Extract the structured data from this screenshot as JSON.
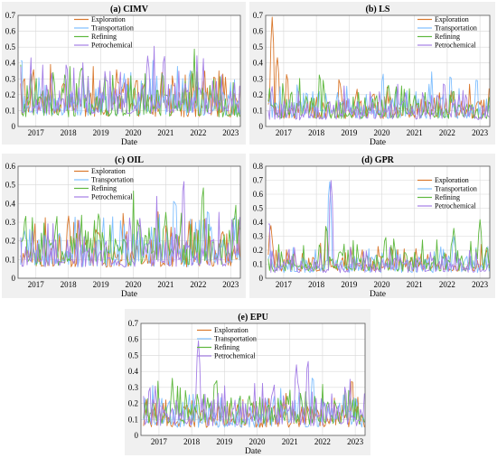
{
  "colors": {
    "Exploration": "#d9782d",
    "Transportation": "#7fbfff",
    "Refining": "#5fb83f",
    "Petrochemical": "#a57fe6"
  },
  "chart_data": [
    {
      "type": "line",
      "title": "(a) CIMV",
      "xlabel": "Date",
      "ylabel": "",
      "xlim": [
        2016.45,
        2023.3
      ],
      "ylim": [
        0,
        0.7
      ],
      "xticks": [
        "2017",
        "2018",
        "2019",
        "2020",
        "2021",
        "2022",
        "2023"
      ],
      "yticks": [
        "0",
        "0.1",
        "0.2",
        "0.3",
        "0.4",
        "0.5",
        "0.6",
        "0.7"
      ],
      "grid": true,
      "legend_position": "top-center",
      "series": [
        {
          "name": "Exploration",
          "base": 0.06,
          "spread": 0.22,
          "seed": 11,
          "spikes": [
            [
              2020.35,
              0.3
            ],
            [
              2022.5,
              0.35
            ]
          ]
        },
        {
          "name": "Transportation",
          "base": 0.07,
          "spread": 0.2,
          "seed": 23,
          "spikes": [
            [
              2016.55,
              0.47
            ],
            [
              2021.75,
              0.38
            ]
          ]
        },
        {
          "name": "Refining",
          "base": 0.06,
          "spread": 0.22,
          "seed": 37,
          "spikes": [
            [
              2017.9,
              0.35
            ],
            [
              2020.9,
              0.37
            ]
          ]
        },
        {
          "name": "Petrochemical",
          "base": 0.08,
          "spread": 0.24,
          "seed": 41,
          "spikes": [
            [
              2020.45,
              0.46
            ],
            [
              2020.95,
              0.48
            ]
          ]
        }
      ]
    },
    {
      "type": "line",
      "title": "(b) LS",
      "xlabel": "Date",
      "ylabel": "",
      "xlim": [
        2016.45,
        2023.3
      ],
      "ylim": [
        0,
        0.7
      ],
      "xticks": [
        "2017",
        "2018",
        "2019",
        "2020",
        "2021",
        "2022",
        "2023"
      ],
      "yticks": [
        "0",
        "0.1",
        "0.2",
        "0.3",
        "0.4",
        "0.5",
        "0.6",
        "0.7"
      ],
      "grid": true,
      "legend_position": "top-right",
      "series": [
        {
          "name": "Exploration",
          "base": 0.05,
          "spread": 0.14,
          "seed": 53,
          "spikes": [
            [
              2016.65,
              0.69
            ],
            [
              2016.8,
              0.46
            ],
            [
              2017.1,
              0.35
            ],
            [
              2018.7,
              0.32
            ]
          ]
        },
        {
          "name": "Transportation",
          "base": 0.05,
          "spread": 0.16,
          "seed": 59,
          "spikes": [
            [
              2022.1,
              0.35
            ],
            [
              2022.9,
              0.33
            ]
          ]
        },
        {
          "name": "Refining",
          "base": 0.05,
          "spread": 0.16,
          "seed": 61,
          "spikes": [
            [
              2018.1,
              0.35
            ],
            [
              2021.0,
              0.2
            ]
          ]
        },
        {
          "name": "Petrochemical",
          "base": 0.04,
          "spread": 0.14,
          "seed": 67,
          "spikes": [
            [
              2021.9,
              0.3
            ]
          ]
        }
      ]
    },
    {
      "type": "line",
      "title": "(c) OIL",
      "xlabel": "Date",
      "ylabel": "",
      "xlim": [
        2016.45,
        2023.3
      ],
      "ylim": [
        0,
        0.6
      ],
      "xticks": [
        "2017",
        "2018",
        "2019",
        "2020",
        "2021",
        "2022",
        "2023"
      ],
      "yticks": [
        "0",
        "0.1",
        "0.2",
        "0.3",
        "0.4",
        "0.5",
        "0.6"
      ],
      "grid": true,
      "legend_position": "top-center",
      "series": [
        {
          "name": "Exploration",
          "base": 0.06,
          "spread": 0.2,
          "seed": 71,
          "spikes": [
            [
              2018.0,
              0.35
            ],
            [
              2019.7,
              0.3
            ]
          ]
        },
        {
          "name": "Transportation",
          "base": 0.06,
          "spread": 0.2,
          "seed": 73,
          "spikes": [
            [
              2021.3,
              0.45
            ],
            [
              2022.3,
              0.4
            ]
          ]
        },
        {
          "name": "Refining",
          "base": 0.07,
          "spread": 0.22,
          "seed": 79,
          "spikes": [
            [
              2021.0,
              0.36
            ],
            [
              2022.15,
              0.52
            ],
            [
              2023.1,
              0.36
            ]
          ]
        },
        {
          "name": "Petrochemical",
          "base": 0.06,
          "spread": 0.2,
          "seed": 83,
          "spikes": [
            [
              2021.55,
              0.56
            ],
            [
              2020.2,
              0.33
            ]
          ]
        }
      ]
    },
    {
      "type": "line",
      "title": "(d) GPR",
      "xlabel": "Date",
      "ylabel": "",
      "xlim": [
        2016.45,
        2023.3
      ],
      "ylim": [
        0,
        0.8
      ],
      "xticks": [
        "2017",
        "2018",
        "2019",
        "2020",
        "2021",
        "2022",
        "2023"
      ],
      "yticks": [
        "0",
        "0.1",
        "0.2",
        "0.3",
        "0.4",
        "0.5",
        "0.6",
        "0.7",
        "0.8"
      ],
      "grid": true,
      "legend_position": "top-right",
      "series": [
        {
          "name": "Exploration",
          "base": 0.05,
          "spread": 0.12,
          "seed": 89,
          "spikes": [
            [
              2016.6,
              0.4
            ],
            [
              2018.3,
              0.4
            ]
          ]
        },
        {
          "name": "Transportation",
          "base": 0.04,
          "spread": 0.12,
          "seed": 97,
          "spikes": [
            [
              2018.4,
              0.72
            ],
            [
              2022.2,
              0.3
            ]
          ]
        },
        {
          "name": "Refining",
          "base": 0.05,
          "spread": 0.15,
          "seed": 101,
          "spikes": [
            [
              2018.3,
              0.4
            ],
            [
              2022.2,
              0.36
            ],
            [
              2023.0,
              0.42
            ]
          ]
        },
        {
          "name": "Petrochemical",
          "base": 0.04,
          "spread": 0.12,
          "seed": 103,
          "spikes": [
            [
              2018.45,
              0.71
            ],
            [
              2016.55,
              0.44
            ]
          ]
        }
      ]
    },
    {
      "type": "line",
      "title": "(e) EPU",
      "xlabel": "Date",
      "ylabel": "",
      "xlim": [
        2016.45,
        2023.3
      ],
      "ylim": [
        0,
        0.7
      ],
      "xticks": [
        "2017",
        "2018",
        "2019",
        "2020",
        "2021",
        "2022",
        "2023"
      ],
      "yticks": [
        "0",
        "0.1",
        "0.2",
        "0.3",
        "0.4",
        "0.5",
        "0.6",
        "0.7"
      ],
      "grid": true,
      "legend_position": "top-center",
      "series": [
        {
          "name": "Exploration",
          "base": 0.05,
          "spread": 0.16,
          "seed": 107,
          "spikes": [
            [
              2019.4,
              0.2
            ],
            [
              2022.9,
              0.38
            ]
          ]
        },
        {
          "name": "Transportation",
          "base": 0.05,
          "spread": 0.16,
          "seed": 109,
          "spikes": [
            [
              2021.7,
              0.4
            ],
            [
              2021.3,
              0.3
            ]
          ]
        },
        {
          "name": "Refining",
          "base": 0.07,
          "spread": 0.18,
          "seed": 113,
          "spikes": [
            [
              2018.75,
              0.38
            ],
            [
              2017.4,
              0.3
            ]
          ]
        },
        {
          "name": "Petrochemical",
          "base": 0.06,
          "spread": 0.18,
          "seed": 127,
          "spikes": [
            [
              2018.2,
              0.62
            ],
            [
              2021.55,
              0.5
            ],
            [
              2021.2,
              0.45
            ]
          ]
        }
      ]
    }
  ]
}
